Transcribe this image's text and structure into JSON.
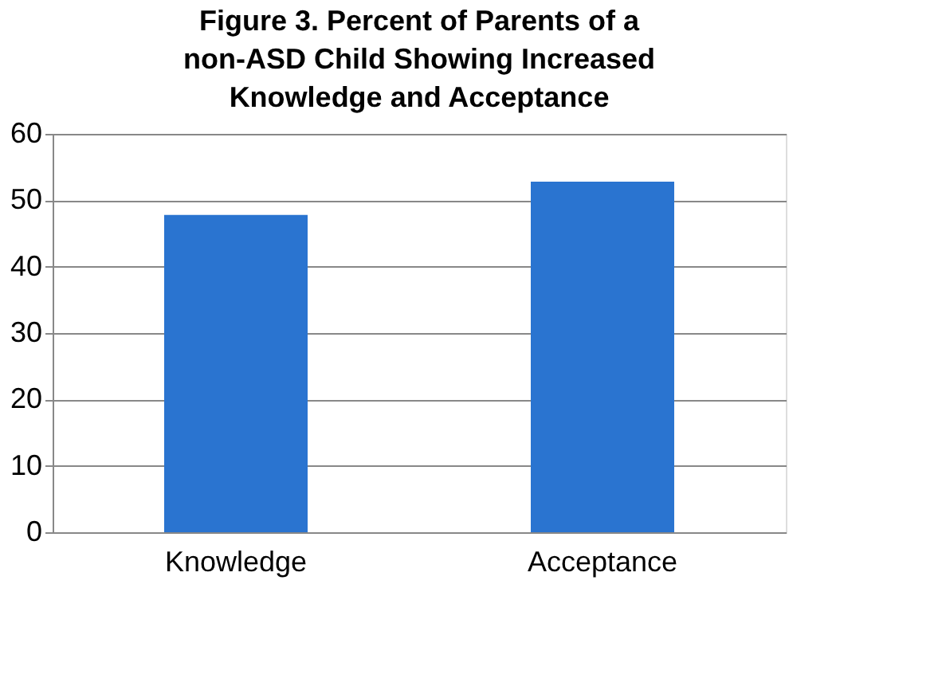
{
  "chart_data": {
    "type": "bar",
    "title": "Figure 3. Percent of Parents of a non-ASD Child Showing Increased Knowledge and Acceptance",
    "categories": [
      "Knowledge",
      "Acceptance"
    ],
    "values": [
      47.8,
      52.8
    ],
    "color": "#2a74d0",
    "ylim": [
      0,
      60
    ],
    "yticks": [
      0,
      10,
      20,
      30,
      40,
      50,
      60
    ],
    "grid": "y"
  }
}
